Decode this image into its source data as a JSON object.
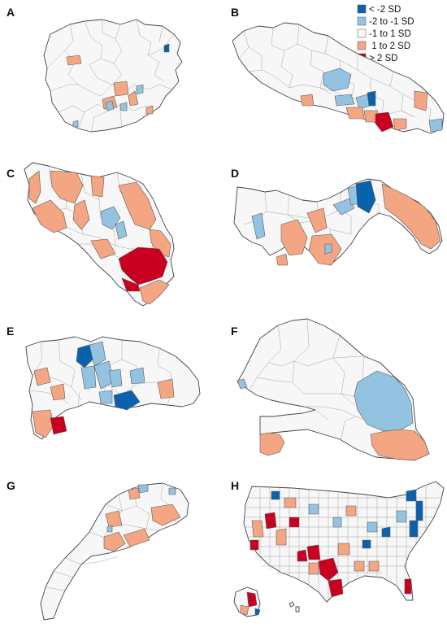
{
  "panels": [
    "A",
    "B",
    "C",
    "D",
    "E",
    "F",
    "G",
    "H"
  ],
  "legend": [
    {
      "label": "< -2 SD",
      "color": "#0a62ad"
    },
    {
      "label": "-2 to -1 SD",
      "color": "#94c3e1"
    },
    {
      "label": "-1 to 1 SD",
      "color": "#f7f7f7"
    },
    {
      "label": " 1 to 2 SD",
      "color": "#f4a582"
    },
    {
      "label": "> 2 SD",
      "color": "#ca0020"
    }
  ]
}
